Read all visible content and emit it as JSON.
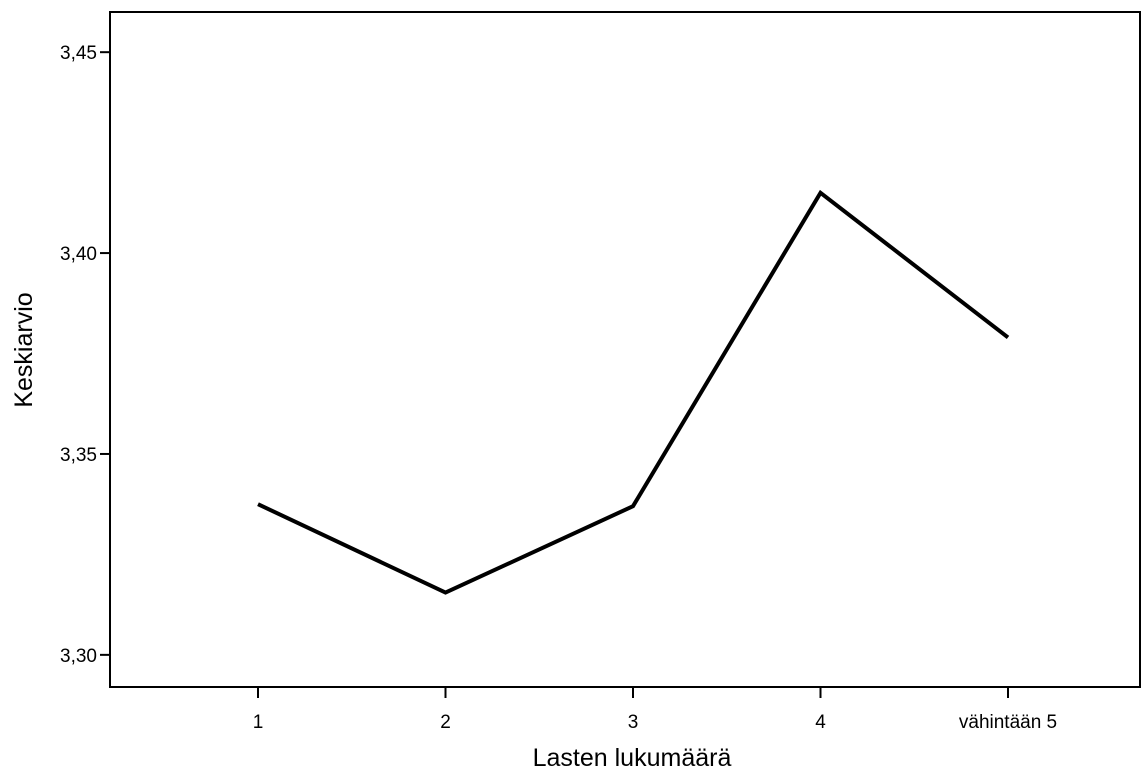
{
  "chart_data": {
    "type": "line",
    "title": "",
    "xlabel": "Lasten lukumäärä",
    "ylabel": "Keskiarvio",
    "categories": [
      "1",
      "2",
      "3",
      "4",
      "vähintään 5"
    ],
    "series": [
      {
        "values": [
          3.3375,
          3.3155,
          3.337,
          3.415,
          3.379
        ]
      }
    ],
    "ylim": [
      3.292,
      3.46
    ],
    "yticks": [
      {
        "value": 3.3,
        "label": "3,30"
      },
      {
        "value": 3.35,
        "label": "3,35"
      },
      {
        "value": 3.4,
        "label": "3,40"
      },
      {
        "value": 3.45,
        "label": "3,45"
      }
    ],
    "grid": false,
    "legend": "none",
    "line_color": "#000000"
  }
}
